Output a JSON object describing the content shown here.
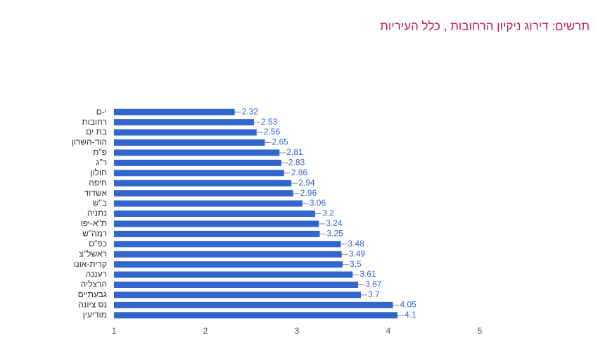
{
  "chart_data": {
    "type": "hbar",
    "title": "תרשים: דירוג ניקיון הרחובות , כלל העיריות",
    "categories": [
      "י-ם",
      "רחובות",
      "בת ים",
      "הוד-השרון",
      "פ\"ת",
      "ר\"ג",
      "חולון",
      "חיפה",
      "אשדוד",
      "ב\"ש",
      "נתניה",
      "ת\"א-יפו",
      "רמה\"ש",
      "כפ\"ס",
      "ראשל\"צ",
      "קרית-אונו",
      "רעננה",
      "הרצליה",
      "גבעתיים",
      "נס ציונה",
      "מודיעין"
    ],
    "values": [
      2.32,
      2.53,
      2.56,
      2.65,
      2.81,
      2.83,
      2.86,
      2.94,
      2.96,
      3.06,
      3.2,
      3.24,
      3.25,
      3.48,
      3.49,
      3.5,
      3.61,
      3.67,
      3.7,
      4.05,
      4.1
    ],
    "color": "#3366cc",
    "xlim": [
      1,
      5
    ],
    "xticks": [
      1,
      2,
      3,
      4,
      5
    ]
  }
}
